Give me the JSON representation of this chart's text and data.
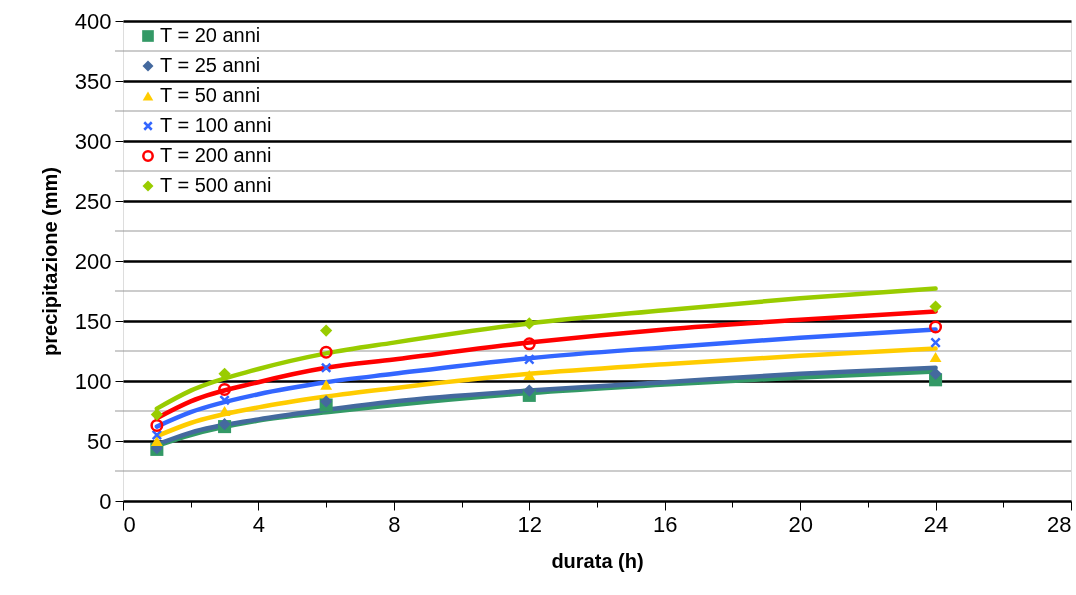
{
  "chart_data": {
    "type": "scatter",
    "xlabel": "durata (h)",
    "ylabel": "precipitazione (mm)",
    "xlim": [
      0,
      28
    ],
    "xticks": [
      0,
      {
        "value": 2,
        "label": null
      },
      4,
      {
        "value": 6,
        "label": null
      },
      8,
      {
        "value": 10,
        "label": null
      },
      12,
      {
        "value": 14,
        "label": null
      },
      16,
      {
        "value": 18,
        "label": null
      },
      20,
      {
        "value": 22,
        "label": null
      },
      24,
      {
        "value": 26,
        "label": null
      },
      28
    ],
    "ylim": [
      0,
      400
    ],
    "yticks": [
      0,
      {
        "value": 25,
        "label": null
      },
      50,
      {
        "value": 75,
        "label": null
      },
      100,
      {
        "value": 125,
        "label": null
      },
      150,
      {
        "value": 175,
        "label": null
      },
      200,
      {
        "value": 225,
        "label": null
      },
      250,
      {
        "value": 275,
        "label": null
      },
      300,
      {
        "value": 325,
        "label": null
      },
      350,
      {
        "value": 375,
        "label": null
      },
      400
    ],
    "grid": "y",
    "legend": "top left",
    "series": [
      {
        "type": "line",
        "color": "#339966",
        "x": [
          1,
          2,
          4,
          6,
          8,
          12,
          16,
          20,
          24
        ],
        "values": [
          46,
          55,
          67,
          74,
          80,
          90,
          97,
          103,
          108
        ]
      },
      {
        "type": "line",
        "color": "#44699e",
        "x": [
          1,
          2,
          4,
          6,
          8,
          12,
          16,
          20,
          24
        ],
        "values": [
          47,
          57,
          68,
          76,
          83,
          92,
          99,
          106,
          111
        ]
      },
      {
        "type": "line",
        "color": "#ffcc00",
        "x": [
          1,
          2,
          4,
          6,
          8,
          12,
          16,
          20,
          24
        ],
        "values": [
          54,
          65,
          78,
          87,
          94,
          106,
          114,
          121,
          127
        ]
      },
      {
        "type": "line",
        "color": "#3366ff",
        "x": [
          1,
          2,
          4,
          6,
          8,
          12,
          16,
          20,
          24
        ],
        "values": [
          62,
          74,
          89,
          99,
          106,
          119,
          128,
          136,
          143
        ]
      },
      {
        "type": "line",
        "color": "#ff0000",
        "x": [
          1,
          2,
          4,
          6,
          8,
          12,
          16,
          20,
          24
        ],
        "values": [
          69,
          83,
          99,
          111,
          118,
          132,
          143,
          151,
          158
        ]
      },
      {
        "type": "line",
        "color": "#99cc00",
        "x": [
          1,
          2,
          4,
          6,
          8,
          12,
          16,
          20,
          24
        ],
        "values": [
          77,
          92,
          110,
          123,
          132,
          148,
          159,
          169,
          177
        ]
      },
      {
        "name": "T = 20 anni",
        "color": "#339966",
        "marker": "square",
        "x": [
          1,
          3,
          6,
          12,
          24
        ],
        "values": [
          43,
          62,
          80,
          88,
          101
        ]
      },
      {
        "name": "T = 25 anni",
        "color": "#44699e",
        "marker": "diamond",
        "x": [
          1,
          3,
          6,
          12,
          24
        ],
        "values": [
          44,
          64,
          83,
          92,
          106
        ]
      },
      {
        "name": "T = 50 anni",
        "color": "#ffcc00",
        "marker": "triangle",
        "x": [
          1,
          3,
          6,
          12,
          24
        ],
        "values": [
          50,
          75,
          97,
          105,
          120
        ]
      },
      {
        "name": "T = 100 anni",
        "color": "#3366ff",
        "marker": "cross",
        "x": [
          1,
          3,
          6,
          12,
          24
        ],
        "values": [
          55,
          84,
          111,
          118,
          132
        ]
      },
      {
        "name": "T = 200 anni",
        "color": "#ff0000",
        "marker": "circle",
        "x": [
          1,
          3,
          6,
          12,
          24
        ],
        "values": [
          63,
          93,
          124,
          131,
          145
        ]
      },
      {
        "name": "T = 500 anni",
        "color": "#99cc00",
        "marker": "diamond",
        "x": [
          1,
          3,
          6,
          12,
          24
        ],
        "values": [
          72,
          106,
          142,
          148,
          162
        ]
      }
    ]
  }
}
